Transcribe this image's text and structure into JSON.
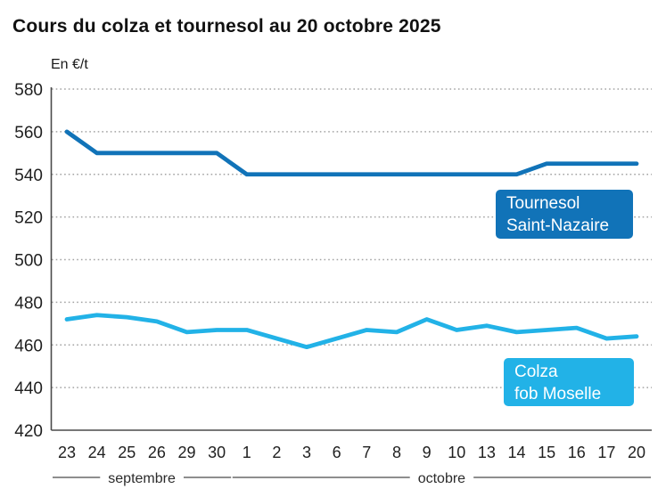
{
  "title": "Cours du colza et tournesol au 20 octobre 2025",
  "unit_label": "En €/t",
  "colors": {
    "tournesol": "#1173b8",
    "colza": "#22b2e7",
    "grid": "#a3a3a3",
    "axis": "#4a4a4a",
    "text": "#1f1f1f"
  },
  "chart_data": {
    "type": "line",
    "title": "Cours du colza et tournesol au 20 octobre 2025",
    "ylabel": "En €/t",
    "grid": true,
    "legend_position": "inline-boxes-on-plot",
    "ylim": [
      420,
      580
    ],
    "y_ticks": [
      420,
      440,
      460,
      480,
      500,
      520,
      540,
      560,
      580
    ],
    "x": [
      "23",
      "24",
      "25",
      "26",
      "29",
      "30",
      "1",
      "2",
      "3",
      "6",
      "7",
      "8",
      "9",
      "10",
      "13",
      "14",
      "15",
      "16",
      "17",
      "20"
    ],
    "x_groups": [
      {
        "label": "septembre",
        "from": 0,
        "to": 5
      },
      {
        "label": "octobre",
        "from": 6,
        "to": 19
      }
    ],
    "series": [
      {
        "name": "Tournesol Saint-Nazaire",
        "label_lines": [
          "Tournesol",
          "Saint-Nazaire"
        ],
        "color": "#1173b8",
        "values": [
          560,
          550,
          550,
          550,
          550,
          550,
          540,
          540,
          540,
          540,
          540,
          540,
          540,
          540,
          540,
          540,
          545,
          545,
          545,
          545
        ]
      },
      {
        "name": "Colza fob Moselle",
        "label_lines": [
          "Colza",
          "fob Moselle"
        ],
        "color": "#22b2e7",
        "values": [
          472,
          474,
          473,
          471,
          466,
          467,
          467,
          463,
          459,
          463,
          467,
          466,
          472,
          467,
          469,
          466,
          467,
          468,
          463,
          464
        ]
      }
    ]
  }
}
